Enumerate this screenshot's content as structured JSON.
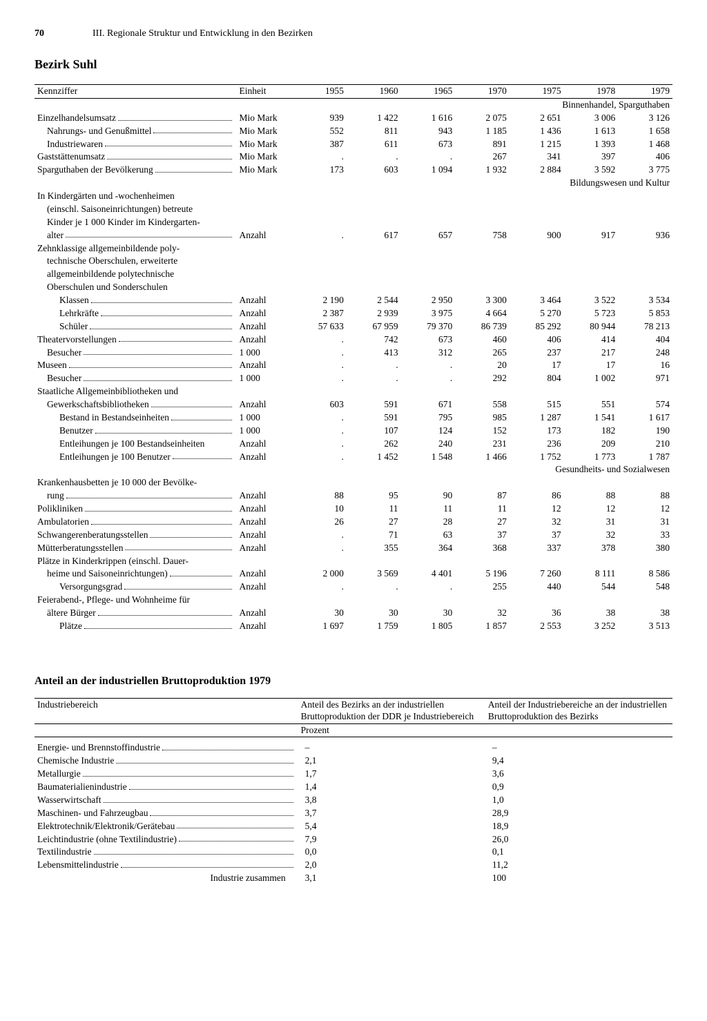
{
  "page_number": "70",
  "chapter": "III. Regionale Struktur und Entwicklung in den Bezirken",
  "district_title": "Bezirk Suhl",
  "col_headers": {
    "label": "Kennziffer",
    "unit": "Einheit",
    "years": [
      "1955",
      "1960",
      "1965",
      "1970",
      "1975",
      "1978",
      "1979"
    ]
  },
  "sections": [
    {
      "title": "Binnenhandel, Sparguthaben",
      "rows": [
        {
          "label": "Einzelhandelsumsatz",
          "indent": 0,
          "dots": true,
          "unit": "Mio Mark",
          "v": [
            "939",
            "1 422",
            "1 616",
            "2 075",
            "2 651",
            "3 006",
            "3 126"
          ]
        },
        {
          "label": "Nahrungs- und Genußmittel",
          "indent": 1,
          "dots": true,
          "unit": "Mio Mark",
          "v": [
            "552",
            "811",
            "943",
            "1 185",
            "1 436",
            "1 613",
            "1 658"
          ]
        },
        {
          "label": "Industriewaren",
          "indent": 1,
          "dots": true,
          "unit": "Mio Mark",
          "v": [
            "387",
            "611",
            "673",
            "891",
            "1 215",
            "1 393",
            "1 468"
          ]
        },
        {
          "label": "Gaststättenumsatz",
          "indent": 0,
          "dots": true,
          "unit": "Mio Mark",
          "v": [
            ".",
            ".",
            ".",
            "267",
            "341",
            "397",
            "406"
          ]
        },
        {
          "label": "Sparguthaben der Bevölkerung",
          "indent": 0,
          "dots": true,
          "unit": "Mio Mark",
          "v": [
            "173",
            "603",
            "1 094",
            "1 932",
            "2 884",
            "3 592",
            "3 775"
          ]
        }
      ]
    },
    {
      "title": "Bildungswesen und Kultur",
      "rows": [
        {
          "label": "In Kindergärten und -wochenheimen",
          "indent": 0,
          "dots": false,
          "unit": "",
          "v": [
            "",
            "",
            "",
            "",
            "",
            "",
            ""
          ]
        },
        {
          "label": "(einschl. Saisoneinrichtungen) betreute",
          "indent": 1,
          "dots": false,
          "unit": "",
          "v": [
            "",
            "",
            "",
            "",
            "",
            "",
            ""
          ]
        },
        {
          "label": "Kinder je 1 000 Kinder im Kindergarten-",
          "indent": 1,
          "dots": false,
          "unit": "",
          "v": [
            "",
            "",
            "",
            "",
            "",
            "",
            ""
          ]
        },
        {
          "label": "alter",
          "indent": 1,
          "dots": true,
          "unit": "Anzahl",
          "v": [
            ".",
            "617",
            "657",
            "758",
            "900",
            "917",
            "936"
          ]
        },
        {
          "label": "Zehnklassige allgemeinbildende poly-",
          "indent": 0,
          "dots": false,
          "unit": "",
          "v": [
            "",
            "",
            "",
            "",
            "",
            "",
            ""
          ]
        },
        {
          "label": "technische Oberschulen, erweiterte",
          "indent": 1,
          "dots": false,
          "unit": "",
          "v": [
            "",
            "",
            "",
            "",
            "",
            "",
            ""
          ]
        },
        {
          "label": "allgemeinbildende polytechnische",
          "indent": 1,
          "dots": false,
          "unit": "",
          "v": [
            "",
            "",
            "",
            "",
            "",
            "",
            ""
          ]
        },
        {
          "label": "Oberschulen und Sonderschulen",
          "indent": 1,
          "dots": false,
          "unit": "",
          "v": [
            "",
            "",
            "",
            "",
            "",
            "",
            ""
          ]
        },
        {
          "label": "Klassen",
          "indent": 2,
          "dots": true,
          "unit": "Anzahl",
          "v": [
            "2 190",
            "2 544",
            "2 950",
            "3 300",
            "3 464",
            "3 522",
            "3 534"
          ]
        },
        {
          "label": "Lehrkräfte",
          "indent": 2,
          "dots": true,
          "unit": "Anzahl",
          "v": [
            "2 387",
            "2 939",
            "3 975",
            "4 664",
            "5 270",
            "5 723",
            "5 853"
          ]
        },
        {
          "label": "Schüler",
          "indent": 2,
          "dots": true,
          "unit": "Anzahl",
          "v": [
            "57 633",
            "67 959",
            "79 370",
            "86 739",
            "85 292",
            "80 944",
            "78 213"
          ]
        },
        {
          "label": "Theatervorstellungen",
          "indent": 0,
          "dots": true,
          "unit": "Anzahl",
          "v": [
            ".",
            "742",
            "673",
            "460",
            "406",
            "414",
            "404"
          ]
        },
        {
          "label": "Besucher",
          "indent": 1,
          "dots": true,
          "unit": "1 000",
          "v": [
            ".",
            "413",
            "312",
            "265",
            "237",
            "217",
            "248"
          ]
        },
        {
          "label": "Museen",
          "indent": 0,
          "dots": true,
          "unit": "Anzahl",
          "v": [
            ".",
            ".",
            ".",
            "20",
            "17",
            "17",
            "16"
          ]
        },
        {
          "label": "Besucher",
          "indent": 1,
          "dots": true,
          "unit": "1 000",
          "v": [
            ".",
            ".",
            ".",
            "292",
            "804",
            "1 002",
            "971"
          ]
        },
        {
          "label": "Staatliche Allgemeinbibliotheken und",
          "indent": 0,
          "dots": false,
          "unit": "",
          "v": [
            "",
            "",
            "",
            "",
            "",
            "",
            ""
          ]
        },
        {
          "label": "Gewerkschaftsbibliotheken",
          "indent": 1,
          "dots": true,
          "unit": "Anzahl",
          "v": [
            "603",
            "591",
            "671",
            "558",
            "515",
            "551",
            "574"
          ]
        },
        {
          "label": "Bestand in Bestandseinheiten",
          "indent": 2,
          "dots": true,
          "unit": "1 000",
          "v": [
            ".",
            "591",
            "795",
            "985",
            "1 287",
            "1 541",
            "1 617"
          ]
        },
        {
          "label": "Benutzer",
          "indent": 2,
          "dots": true,
          "unit": "1 000",
          "v": [
            ".",
            "107",
            "124",
            "152",
            "173",
            "182",
            "190"
          ]
        },
        {
          "label": "Entleihungen je 100 Bestandseinheiten",
          "indent": 2,
          "dots": false,
          "unit": "Anzahl",
          "v": [
            ".",
            "262",
            "240",
            "231",
            "236",
            "209",
            "210"
          ]
        },
        {
          "label": "Entleihungen je 100 Benutzer",
          "indent": 2,
          "dots": true,
          "unit": "Anzahl",
          "v": [
            ".",
            "1 452",
            "1 548",
            "1 466",
            "1 752",
            "1 773",
            "1 787"
          ]
        }
      ]
    },
    {
      "title": "Gesundheits- und Sozialwesen",
      "rows": [
        {
          "label": "Krankenhausbetten je 10 000 der Bevölke-",
          "indent": 0,
          "dots": false,
          "unit": "",
          "v": [
            "",
            "",
            "",
            "",
            "",
            "",
            ""
          ]
        },
        {
          "label": "rung",
          "indent": 1,
          "dots": true,
          "unit": "Anzahl",
          "v": [
            "88",
            "95",
            "90",
            "87",
            "86",
            "88",
            "88"
          ]
        },
        {
          "label": "Polikliniken",
          "indent": 0,
          "dots": true,
          "unit": "Anzahl",
          "v": [
            "10",
            "11",
            "11",
            "11",
            "12",
            "12",
            "12"
          ]
        },
        {
          "label": "Ambulatorien",
          "indent": 0,
          "dots": true,
          "unit": "Anzahl",
          "v": [
            "26",
            "27",
            "28",
            "27",
            "32",
            "31",
            "31"
          ]
        },
        {
          "label": "Schwangerenberatungsstellen",
          "indent": 0,
          "dots": true,
          "unit": "Anzahl",
          "v": [
            ".",
            "71",
            "63",
            "37",
            "37",
            "32",
            "33"
          ]
        },
        {
          "label": "Mütterberatungsstellen",
          "indent": 0,
          "dots": true,
          "unit": "Anzahl",
          "v": [
            ".",
            "355",
            "364",
            "368",
            "337",
            "378",
            "380"
          ]
        },
        {
          "label": "Plätze in Kinderkrippen (einschl. Dauer-",
          "indent": 0,
          "dots": false,
          "unit": "",
          "v": [
            "",
            "",
            "",
            "",
            "",
            "",
            ""
          ]
        },
        {
          "label": "heime und Saisoneinrichtungen)",
          "indent": 1,
          "dots": true,
          "unit": "Anzahl",
          "v": [
            "2 000",
            "3 569",
            "4 401",
            "5 196",
            "7 260",
            "8 111",
            "8 586"
          ]
        },
        {
          "label": "Versorgungsgrad",
          "indent": 2,
          "dots": true,
          "unit": "Anzahl",
          "v": [
            ".",
            ".",
            ".",
            "255",
            "440",
            "544",
            "548"
          ]
        },
        {
          "label": "Feierabend-, Pflege- und Wohnheime für",
          "indent": 0,
          "dots": false,
          "unit": "",
          "v": [
            "",
            "",
            "",
            "",
            "",
            "",
            ""
          ]
        },
        {
          "label": "ältere Bürger",
          "indent": 1,
          "dots": true,
          "unit": "Anzahl",
          "v": [
            "30",
            "30",
            "30",
            "32",
            "36",
            "38",
            "38"
          ]
        },
        {
          "label": "Plätze",
          "indent": 2,
          "dots": true,
          "unit": "Anzahl",
          "v": [
            "1 697",
            "1 759",
            "1 805",
            "1 857",
            "2 553",
            "3 252",
            "3 513"
          ]
        }
      ]
    }
  ],
  "table2": {
    "title": "Anteil an der industriellen Bruttoproduktion 1979",
    "h_label": "Industriebereich",
    "h_a": "Anteil des Bezirks an der industriellen Bruttoproduktion der DDR je Industriebereich",
    "h_b": "Anteil der Industriebereiche an der industriellen Bruttoproduktion des Bezirks",
    "unit": "Prozent",
    "rows": [
      {
        "label": "Energie- und Brennstoffindustrie",
        "a": "–",
        "b": "–"
      },
      {
        "label": "Chemische Industrie",
        "a": "2,1",
        "b": "9,4"
      },
      {
        "label": "Metallurgie",
        "a": "1,7",
        "b": "3,6"
      },
      {
        "label": "Baumaterialienindustrie",
        "a": "1,4",
        "b": "0,9"
      },
      {
        "label": "Wasserwirtschaft",
        "a": "3,8",
        "b": "1,0"
      },
      {
        "label": "Maschinen- und Fahrzeugbau",
        "a": "3,7",
        "b": "28,9"
      },
      {
        "label": "Elektrotechnik/Elektronik/Gerätebau",
        "a": "5,4",
        "b": "18,9"
      },
      {
        "label": "Leichtindustrie (ohne Textilindustrie)",
        "a": "7,9",
        "b": "26,0"
      },
      {
        "label": "Textilindustrie",
        "a": "0,0",
        "b": "0,1"
      },
      {
        "label": "Lebensmittelindustrie",
        "a": "2,0",
        "b": "11,2"
      }
    ],
    "total": {
      "label": "Industrie zusammen",
      "a": "3,1",
      "b": "100"
    }
  }
}
